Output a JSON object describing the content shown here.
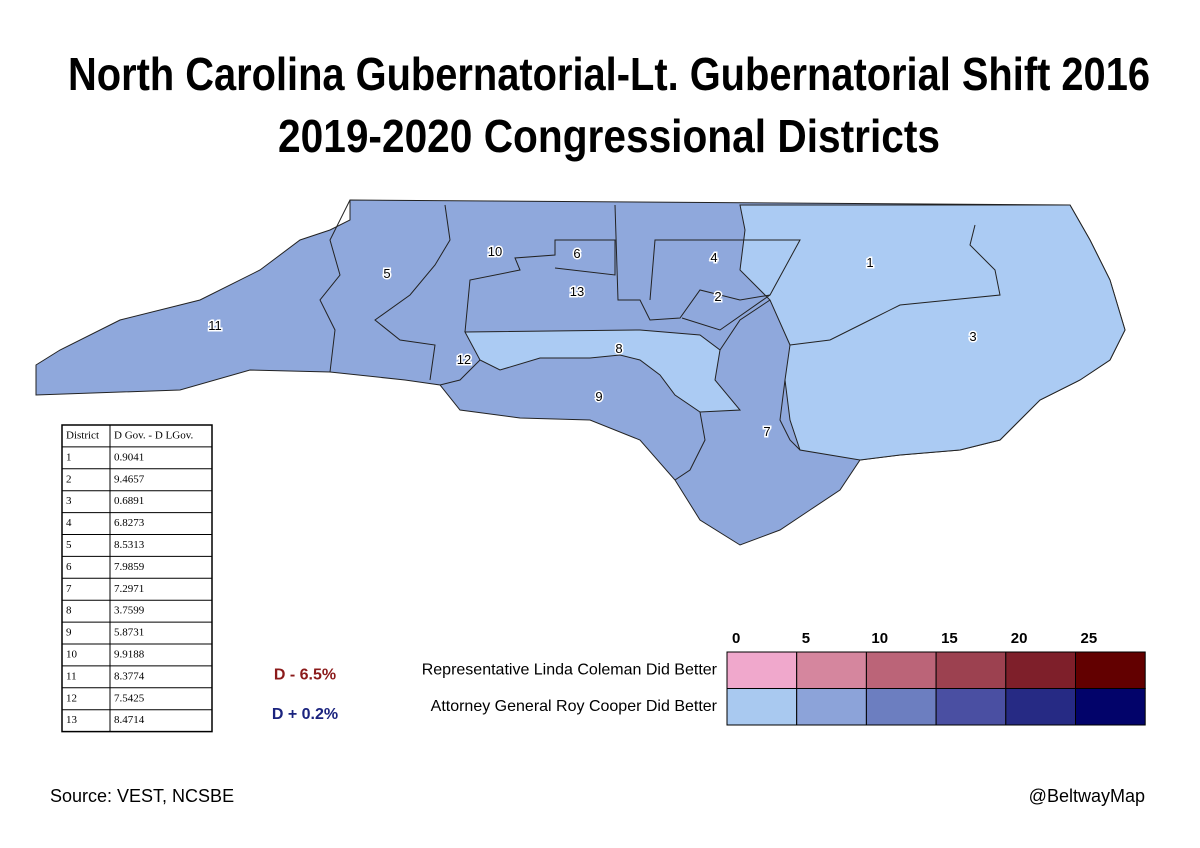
{
  "header": {
    "title_lines": [
      "North Carolina Gubernatorial-Lt. Gubernatorial Shift 2016",
      "2019-2020 Congressional Districts"
    ]
  },
  "table": {
    "columns": [
      "District",
      "D Gov. - D LGov."
    ],
    "rows": [
      [
        "1",
        "0.9041"
      ],
      [
        "2",
        "9.4657"
      ],
      [
        "3",
        "0.6891"
      ],
      [
        "4",
        "6.8273"
      ],
      [
        "5",
        "8.5313"
      ],
      [
        "6",
        "7.9859"
      ],
      [
        "7",
        "7.2971"
      ],
      [
        "8",
        "3.7599"
      ],
      [
        "9",
        "5.8731"
      ],
      [
        "10",
        "9.9188"
      ],
      [
        "11",
        "8.3774"
      ],
      [
        "12",
        "7.5425"
      ],
      [
        "13",
        "8.4714"
      ]
    ]
  },
  "legend": {
    "scale_ticks": [
      "0",
      "5",
      "10",
      "15",
      "20",
      "25"
    ],
    "rows": [
      {
        "tag": "D - 6.5%",
        "label": "Representative Linda Coleman Did Better",
        "tag_color": "#8b1a1a",
        "colors": [
          "#f0a8cc",
          "#d5869e",
          "#bb6478",
          "#9c4150",
          "#7e1f2a",
          "#620000"
        ]
      },
      {
        "tag": "D + 0.2%",
        "label": "Attorney General Roy Cooper Did Better",
        "tag_color": "#1a237e",
        "colors": [
          "#a9c9f0",
          "#8ca3d9",
          "#6c7ec0",
          "#4a4fa2",
          "#262a84",
          "#02036a"
        ]
      }
    ]
  },
  "footer": {
    "source": "Source: VEST, NCSBE",
    "credit": "@BeltwayMap"
  }
}
